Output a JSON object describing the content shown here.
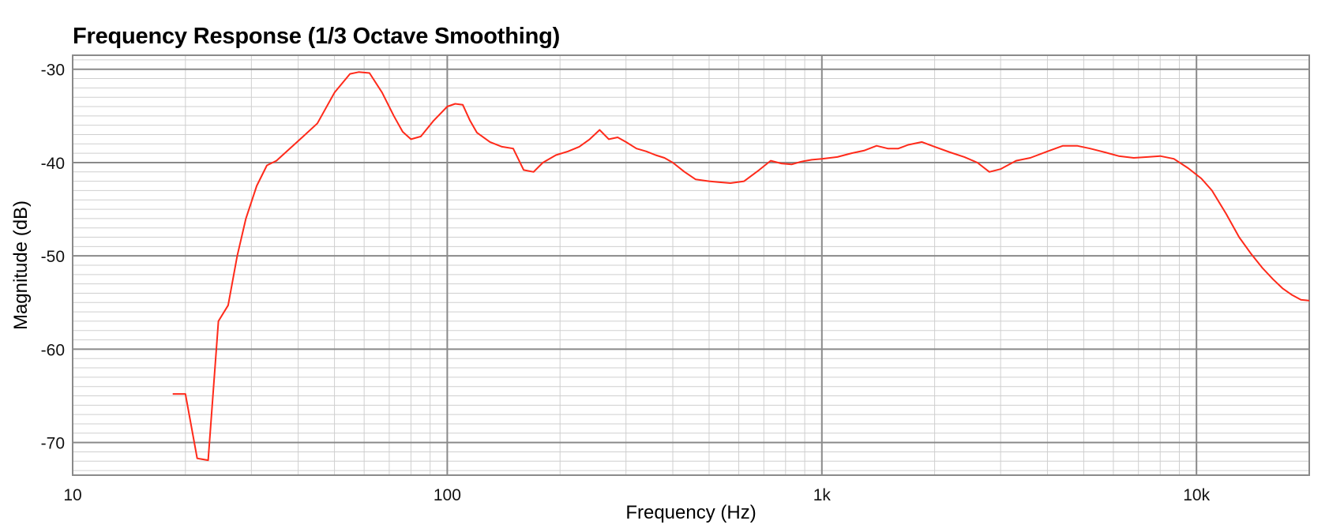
{
  "chart_data": {
    "type": "line",
    "title": "Frequency Response (1/3 Octave Smoothing)",
    "xlabel": "Frequency (Hz)",
    "ylabel": "Magnitude (dB)",
    "x_scale": "log",
    "xlim": [
      10,
      20000
    ],
    "ylim": [
      -73.5,
      -28.5
    ],
    "x_ticks": [
      10,
      100,
      1000,
      10000
    ],
    "x_tick_labels": [
      "10",
      "100",
      "1k",
      "10k"
    ],
    "y_ticks": [
      -30,
      -40,
      -50,
      -60,
      -70
    ],
    "y_tick_labels": [
      "-30",
      "-40",
      "-50",
      "-60",
      "-70"
    ],
    "grid": true,
    "colors": {
      "line": "#ff2a1a",
      "major_grid": "#8a8a8a",
      "minor_grid": "#cfcfcf",
      "frame": "#8a8a8a"
    },
    "series": [
      {
        "x": [
          18.5,
          20,
          21.5,
          23,
          24.5,
          26,
          27.5,
          29,
          31,
          33,
          35,
          38,
          41,
          45,
          50,
          55,
          58,
          62,
          67,
          72,
          76,
          80,
          85,
          92,
          100,
          105,
          110,
          115,
          120,
          130,
          140,
          150,
          160,
          170,
          180,
          195,
          210,
          225,
          240,
          255,
          270,
          285,
          300,
          320,
          340,
          360,
          380,
          400,
          430,
          460,
          500,
          530,
          570,
          620,
          680,
          730,
          780,
          830,
          880,
          940,
          1000,
          1100,
          1200,
          1300,
          1400,
          1500,
          1600,
          1700,
          1850,
          2000,
          2200,
          2400,
          2600,
          2800,
          3000,
          3300,
          3600,
          4000,
          4400,
          4800,
          5200,
          5700,
          6200,
          6800,
          7400,
          8000,
          8700,
          9500,
          10300,
          11000,
          12000,
          13000,
          14000,
          15000,
          16000,
          17000,
          18000,
          19000,
          20000
        ],
        "y": [
          -64.8,
          -64.8,
          -71.7,
          -71.9,
          -57.0,
          -55.3,
          -50.0,
          -46.0,
          -42.5,
          -40.3,
          -39.8,
          -38.5,
          -37.3,
          -35.8,
          -32.5,
          -30.5,
          -30.3,
          -30.4,
          -32.5,
          -35.0,
          -36.7,
          -37.5,
          -37.2,
          -35.5,
          -34.0,
          -33.7,
          -33.8,
          -35.5,
          -36.8,
          -37.8,
          -38.3,
          -38.5,
          -40.8,
          -41.0,
          -40.0,
          -39.2,
          -38.8,
          -38.3,
          -37.5,
          -36.5,
          -37.5,
          -37.3,
          -37.8,
          -38.5,
          -38.8,
          -39.2,
          -39.5,
          -40.0,
          -41.0,
          -41.8,
          -42.0,
          -42.1,
          -42.2,
          -42.0,
          -40.8,
          -39.8,
          -40.1,
          -40.2,
          -39.9,
          -39.7,
          -39.6,
          -39.4,
          -39.0,
          -38.7,
          -38.2,
          -38.5,
          -38.5,
          -38.1,
          -37.8,
          -38.3,
          -38.9,
          -39.4,
          -40.0,
          -41.0,
          -40.7,
          -39.8,
          -39.5,
          -38.8,
          -38.2,
          -38.2,
          -38.5,
          -38.9,
          -39.3,
          -39.5,
          -39.4,
          -39.3,
          -39.6,
          -40.6,
          -41.7,
          -43.0,
          -45.5,
          -48.0,
          -49.8,
          -51.3,
          -52.5,
          -53.5,
          -54.2,
          -54.7,
          -54.8
        ]
      }
    ]
  }
}
